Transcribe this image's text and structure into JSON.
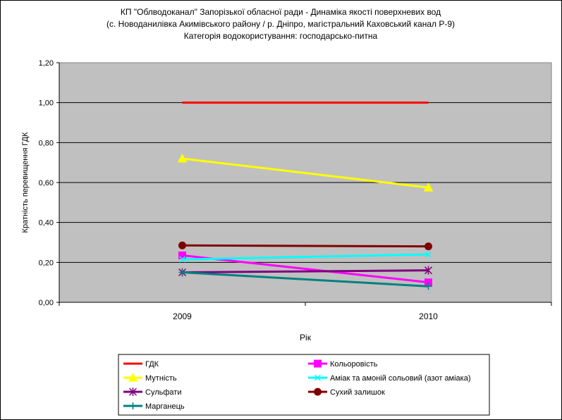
{
  "chart_data": {
    "type": "line",
    "title_lines": [
      "КП \"Облводоканал\" Запорізької обласної ради - Динаміка якості поверхневих вод",
      "(с. Новоданилівка Акимівського району / р. Дніпро, магістральний Каховський канал Р-9)",
      "Категорія водокористування: господарсько-питна"
    ],
    "xlabel": "Рік",
    "ylabel": "Кратність перевищення ГДК",
    "categories": [
      "2009",
      "2010"
    ],
    "ylim": [
      0,
      1.2
    ],
    "y_ticks": [
      "0,00",
      "0,20",
      "0,40",
      "0,60",
      "0,80",
      "1,00",
      "1,20"
    ],
    "grid": "horizontal",
    "plot_background": "#c0c0c0",
    "legend_position": "bottom",
    "series": [
      {
        "name": "ГДК",
        "values": [
          1.0,
          1.0
        ],
        "color": "#ff0000",
        "marker": "none"
      },
      {
        "name": "Кольоровість",
        "values": [
          0.235,
          0.1
        ],
        "color": "#ff00ff",
        "marker": "square"
      },
      {
        "name": "Мутність",
        "values": [
          0.72,
          0.575
        ],
        "color": "#ffff00",
        "marker": "triangle"
      },
      {
        "name": "Аміак та амоній сольовий (азот аміака)",
        "values": [
          0.215,
          0.24
        ],
        "color": "#00ffff",
        "marker": "x"
      },
      {
        "name": "Сульфати",
        "values": [
          0.15,
          0.16
        ],
        "color": "#800080",
        "marker": "star"
      },
      {
        "name": "Сухий залишок",
        "values": [
          0.285,
          0.28
        ],
        "color": "#800000",
        "marker": "circle"
      },
      {
        "name": "Марганець",
        "values": [
          0.15,
          0.08
        ],
        "color": "#008080",
        "marker": "plus"
      }
    ]
  }
}
